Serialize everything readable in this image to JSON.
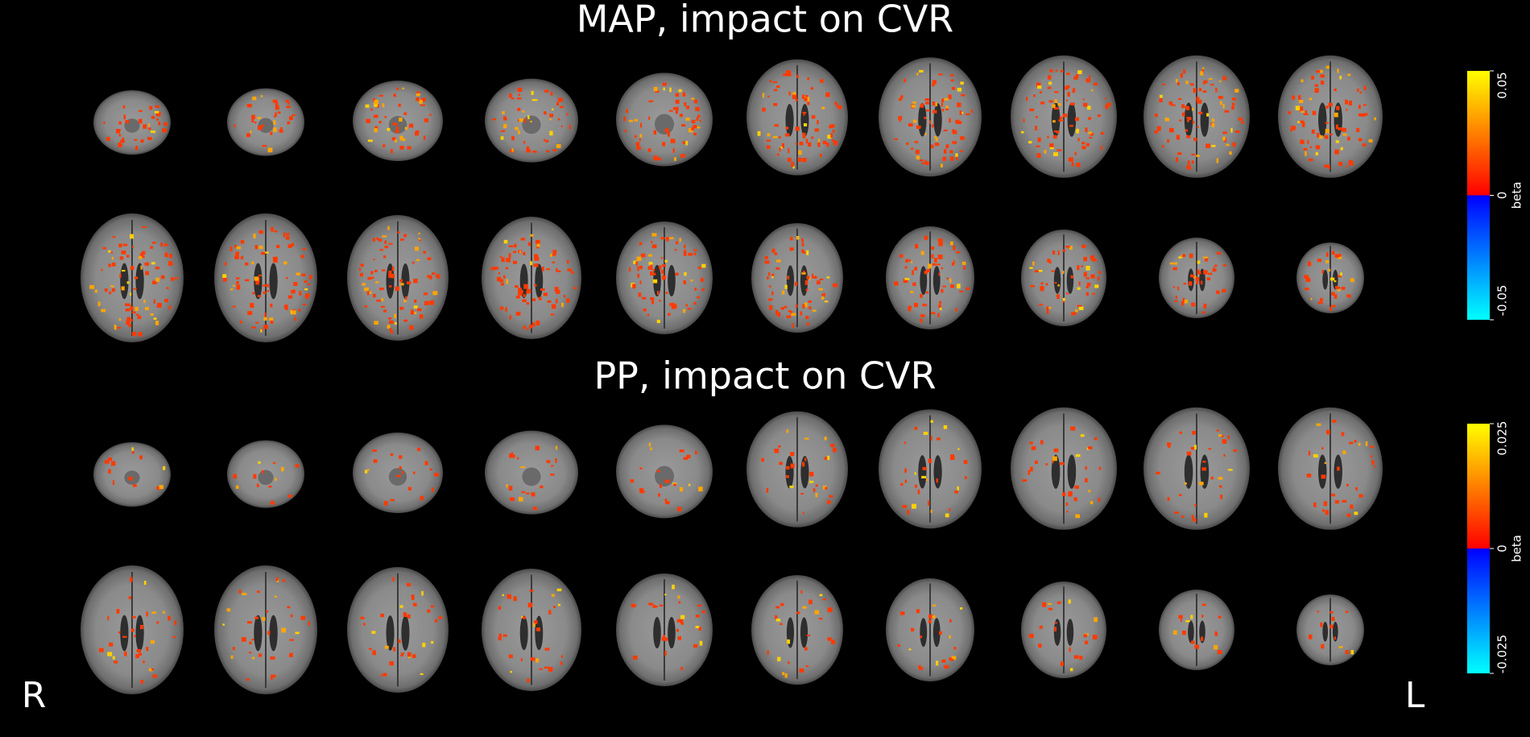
{
  "panels": [
    {
      "title": "MAP, impact on CVR",
      "colorbar": {
        "label": "beta",
        "ticks": [
          0.05,
          0,
          -0.05
        ]
      }
    },
    {
      "title": "PP, impact on CVR",
      "colorbar": {
        "label": "beta",
        "ticks": [
          0.025,
          0,
          -0.025
        ]
      }
    }
  ],
  "orientation": {
    "left": "R",
    "right": "L"
  }
}
